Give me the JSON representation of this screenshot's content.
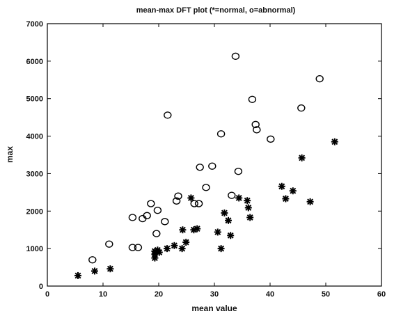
{
  "chart_data": {
    "type": "scatter",
    "title": "mean-max DFT plot (*=normal, o=abnormal)",
    "xlabel": "mean value",
    "ylabel": "max",
    "xlim": [
      0,
      60
    ],
    "ylim": [
      0,
      7000
    ],
    "xticks": [
      0,
      10,
      20,
      30,
      40,
      50,
      60
    ],
    "yticks": [
      0,
      1000,
      2000,
      3000,
      4000,
      5000,
      6000,
      7000
    ],
    "grid": false,
    "legend": "none",
    "series": [
      {
        "marker": "asterisk",
        "points": [
          [
            5.5,
            280
          ],
          [
            8.5,
            400
          ],
          [
            11.3,
            460
          ],
          [
            19.3,
            750
          ],
          [
            19.3,
            850
          ],
          [
            19.3,
            930
          ],
          [
            19.8,
            960
          ],
          [
            20.1,
            900
          ],
          [
            21.5,
            1000
          ],
          [
            22.8,
            1080
          ],
          [
            24.2,
            1000
          ],
          [
            24.3,
            1500
          ],
          [
            24.9,
            1170
          ],
          [
            25.8,
            2350
          ],
          [
            26.3,
            1500
          ],
          [
            26.9,
            1530
          ],
          [
            30.6,
            1440
          ],
          [
            31.2,
            1000
          ],
          [
            31.8,
            1950
          ],
          [
            32.5,
            1750
          ],
          [
            32.9,
            1350
          ],
          [
            34.4,
            2350
          ],
          [
            35.9,
            2280
          ],
          [
            36.1,
            2090
          ],
          [
            36.4,
            1830
          ],
          [
            42.1,
            2660
          ],
          [
            42.8,
            2330
          ],
          [
            44.1,
            2540
          ],
          [
            45.7,
            3420
          ],
          [
            47.2,
            2250
          ],
          [
            51.6,
            3850
          ]
        ]
      },
      {
        "marker": "circle",
        "points": [
          [
            8.1,
            700
          ],
          [
            11.1,
            1120
          ],
          [
            15.3,
            1830
          ],
          [
            15.3,
            1030
          ],
          [
            16.3,
            1030
          ],
          [
            17.1,
            1800
          ],
          [
            17.9,
            1880
          ],
          [
            18.6,
            2200
          ],
          [
            19.6,
            1400
          ],
          [
            19.8,
            2020
          ],
          [
            21.1,
            1720
          ],
          [
            21.6,
            4560
          ],
          [
            23.2,
            2270
          ],
          [
            23.5,
            2400
          ],
          [
            26.4,
            2200
          ],
          [
            27.2,
            2200
          ],
          [
            27.4,
            3170
          ],
          [
            28.5,
            2630
          ],
          [
            29.6,
            3200
          ],
          [
            31.2,
            4060
          ],
          [
            33.1,
            2420
          ],
          [
            33.8,
            6130
          ],
          [
            34.3,
            3060
          ],
          [
            36.8,
            4980
          ],
          [
            37.4,
            4310
          ],
          [
            37.6,
            4170
          ],
          [
            40.1,
            3920
          ],
          [
            45.6,
            4750
          ],
          [
            48.9,
            5530
          ]
        ]
      }
    ]
  }
}
